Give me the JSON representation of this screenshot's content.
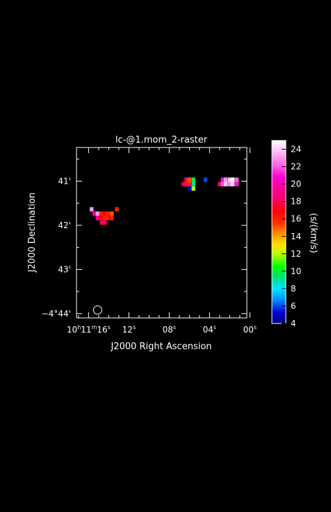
{
  "chart_data": {
    "type": "heatmap",
    "title": "lc-@1.mom_2-raster",
    "xlabel": "J2000 Right Ascension",
    "ylabel": "J2000 Declination",
    "x_ticks": [
      {
        "main": "10",
        "h": "h",
        "min": "11",
        "m": "m",
        "sec": "16",
        "s": "s",
        "value": 16
      },
      {
        "sec": "12",
        "s": "s",
        "value": 12
      },
      {
        "sec": "08",
        "s": "s",
        "value": 8
      },
      {
        "sec": "04",
        "s": "s",
        "value": 4
      },
      {
        "sec": "00",
        "s": "s",
        "value": 0
      }
    ],
    "y_ticks": [
      {
        "label": "41'",
        "value": -40.983
      },
      {
        "label": "42'",
        "value": -41.983
      },
      {
        "label": "43'",
        "value": -42.983
      },
      {
        "label": "−4°44'",
        "value": -43.983
      }
    ],
    "xlim": [
      17.2,
      0.3
    ],
    "ylim": [
      -44.08,
      -40.22
    ],
    "colorbar": {
      "label": "(s/(km/s)",
      "range": [
        4,
        25
      ],
      "ticks": [
        "24",
        "22",
        "20",
        "18",
        "16",
        "14",
        "12",
        "10",
        "8",
        "6",
        "4"
      ],
      "tick_values": [
        24,
        22,
        20,
        18,
        16,
        14,
        12,
        10,
        8,
        6,
        4
      ]
    },
    "points": [
      {
        "ra": 15.7,
        "dec": -41.62,
        "value": 23
      },
      {
        "ra": 15.4,
        "dec": -41.72,
        "value": 20
      },
      {
        "ra": 15.1,
        "dec": -41.72,
        "value": 23
      },
      {
        "ra": 14.7,
        "dec": -41.72,
        "value": 16
      },
      {
        "ra": 14.4,
        "dec": -41.72,
        "value": 17
      },
      {
        "ra": 14.1,
        "dec": -41.72,
        "value": 16
      },
      {
        "ra": 13.7,
        "dec": -41.72,
        "value": 15
      },
      {
        "ra": 13.2,
        "dec": -41.62,
        "value": 16
      },
      {
        "ra": 15.1,
        "dec": -41.82,
        "value": 19
      },
      {
        "ra": 14.7,
        "dec": -41.82,
        "value": 17
      },
      {
        "ra": 14.4,
        "dec": -41.82,
        "value": 16
      },
      {
        "ra": 14.1,
        "dec": -41.82,
        "value": 16
      },
      {
        "ra": 13.7,
        "dec": -41.82,
        "value": 16
      },
      {
        "ra": 14.7,
        "dec": -41.92,
        "value": 18
      },
      {
        "ra": 14.4,
        "dec": -41.92,
        "value": 18
      },
      {
        "ra": 6.3,
        "dec": -40.95,
        "value": 18
      },
      {
        "ra": 6.0,
        "dec": -40.95,
        "value": 15
      },
      {
        "ra": 5.6,
        "dec": -40.95,
        "value": 10
      },
      {
        "ra": 4.4,
        "dec": -40.95,
        "value": 6
      },
      {
        "ra": 6.6,
        "dec": -41.05,
        "value": 17
      },
      {
        "ra": 6.3,
        "dec": -41.05,
        "value": 19
      },
      {
        "ra": 6.0,
        "dec": -41.05,
        "value": 16
      },
      {
        "ra": 5.6,
        "dec": -41.05,
        "value": 9
      },
      {
        "ra": 6.0,
        "dec": -41.15,
        "value": 5
      },
      {
        "ra": 5.6,
        "dec": -41.15,
        "value": 12
      },
      {
        "ra": 2.7,
        "dec": -40.95,
        "value": 21
      },
      {
        "ra": 2.4,
        "dec": -40.95,
        "value": 23
      },
      {
        "ra": 2.0,
        "dec": -40.95,
        "value": 24
      },
      {
        "ra": 1.7,
        "dec": -40.95,
        "value": 25
      },
      {
        "ra": 1.3,
        "dec": -40.95,
        "value": 22
      },
      {
        "ra": 3.0,
        "dec": -41.05,
        "value": 18
      },
      {
        "ra": 2.7,
        "dec": -41.05,
        "value": 22
      },
      {
        "ra": 2.4,
        "dec": -41.05,
        "value": 24
      },
      {
        "ra": 2.0,
        "dec": -41.05,
        "value": 23
      },
      {
        "ra": 1.7,
        "dec": -41.05,
        "value": 24
      },
      {
        "ra": 1.3,
        "dec": -41.05,
        "value": 21
      }
    ],
    "beam": {
      "ra": 15.1,
      "dec": -43.9
    },
    "grid": false,
    "legend": "colorbar-right"
  }
}
